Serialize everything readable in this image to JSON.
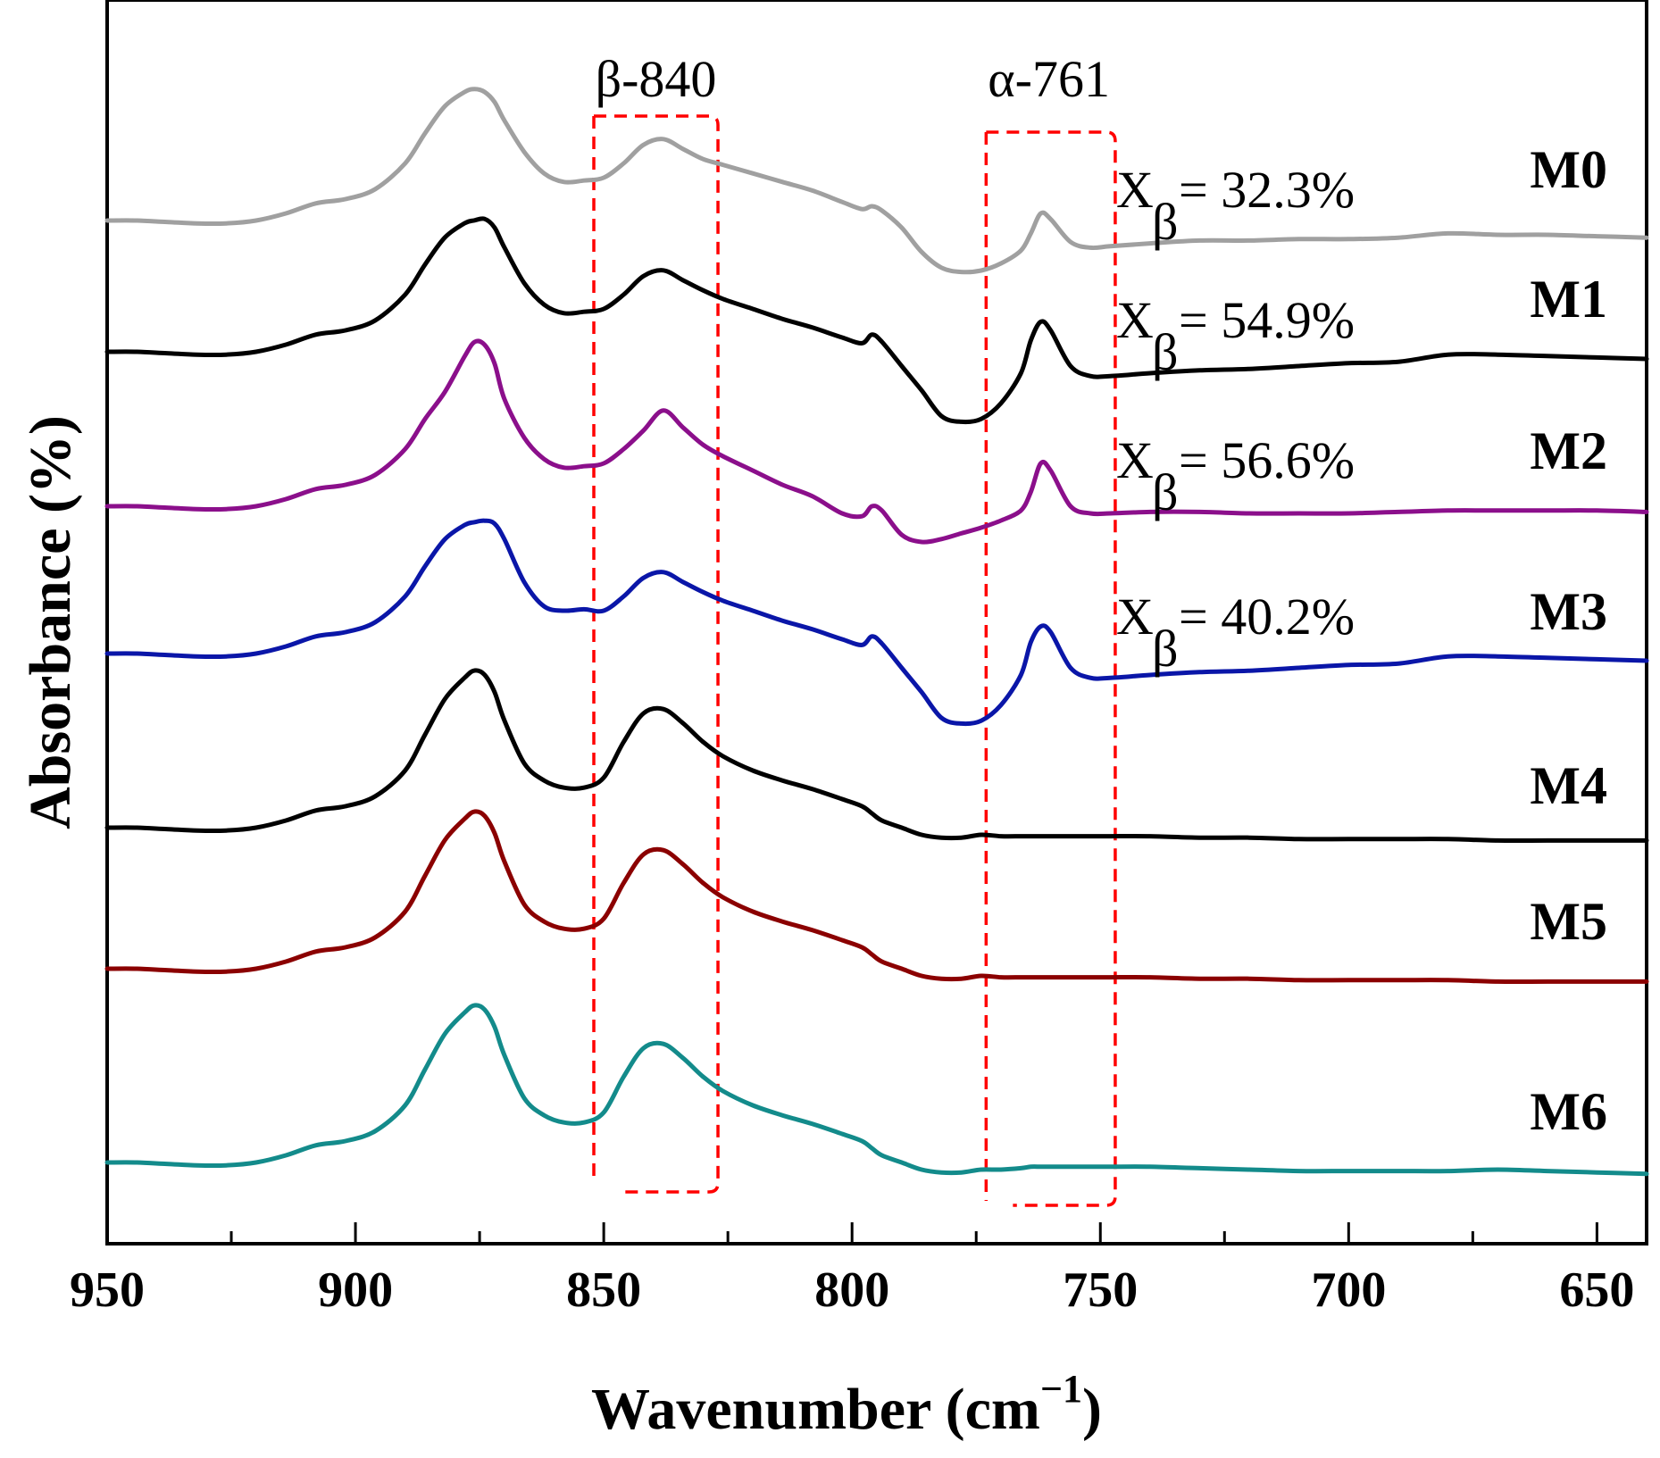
{
  "chart_data": {
    "type": "line",
    "title": "",
    "xlabel_main": "Wavenumber (cm",
    "xlabel_sup": "−1",
    "xlabel_close": ")",
    "ylabel": "Absorbance (%)",
    "xlim": [
      950,
      640
    ],
    "x_reversed": true,
    "x_ticks": [
      950,
      900,
      850,
      800,
      750,
      700,
      650
    ],
    "y_ticks_shown": false,
    "grid": false,
    "legend": "inline labels at right",
    "series_anchor_x": [
      950,
      944,
      938,
      932,
      926,
      920,
      914,
      908,
      902,
      896,
      890,
      886,
      882,
      878,
      876,
      874,
      872,
      870,
      866,
      862,
      858,
      854,
      850,
      846,
      842,
      838,
      834,
      830,
      826,
      820,
      814,
      808,
      802,
      798,
      796,
      794,
      790,
      786,
      782,
      778,
      774,
      770,
      766,
      764,
      762,
      760,
      756,
      752,
      748,
      740,
      730,
      720,
      710,
      700,
      690,
      680,
      670,
      660,
      650,
      640
    ],
    "series": [
      {
        "name": "M0",
        "color": "#a0a0a0",
        "offset": 0,
        "values": [
          0.05,
          0.05,
          0.04,
          0.03,
          0.03,
          0.05,
          0.1,
          0.17,
          0.2,
          0.27,
          0.45,
          0.66,
          0.85,
          0.95,
          0.97,
          0.95,
          0.88,
          0.75,
          0.53,
          0.38,
          0.32,
          0.33,
          0.35,
          0.45,
          0.58,
          0.62,
          0.55,
          0.48,
          0.44,
          0.38,
          0.32,
          0.26,
          0.18,
          0.13,
          0.15,
          0.12,
          0.0,
          -0.17,
          -0.28,
          -0.31,
          -0.3,
          -0.25,
          -0.16,
          -0.04,
          0.1,
          0.06,
          -0.1,
          -0.14,
          -0.13,
          -0.11,
          -0.09,
          -0.09,
          -0.08,
          -0.08,
          -0.07,
          -0.04,
          -0.05,
          -0.05,
          -0.06,
          -0.07
        ]
      },
      {
        "name": "M1",
        "color": "#000000",
        "offset": 0,
        "values": [
          0.05,
          0.05,
          0.04,
          0.03,
          0.03,
          0.05,
          0.1,
          0.17,
          0.2,
          0.27,
          0.45,
          0.66,
          0.85,
          0.95,
          0.97,
          0.98,
          0.92,
          0.78,
          0.53,
          0.38,
          0.32,
          0.33,
          0.35,
          0.45,
          0.58,
          0.62,
          0.55,
          0.48,
          0.42,
          0.35,
          0.28,
          0.22,
          0.15,
          0.11,
          0.17,
          0.12,
          -0.05,
          -0.22,
          -0.4,
          -0.44,
          -0.42,
          -0.31,
          -0.1,
          0.13,
          0.26,
          0.2,
          -0.05,
          -0.12,
          -0.12,
          -0.1,
          -0.08,
          -0.07,
          -0.05,
          -0.03,
          -0.02,
          0.03,
          0.03,
          0.02,
          0.01,
          0.0
        ]
      },
      {
        "name": "M2",
        "color": "#8b0f8b",
        "offset": 0,
        "values": [
          0.05,
          0.05,
          0.04,
          0.03,
          0.03,
          0.05,
          0.1,
          0.17,
          0.2,
          0.27,
          0.45,
          0.66,
          0.85,
          1.1,
          1.2,
          1.18,
          1.05,
          0.8,
          0.53,
          0.38,
          0.32,
          0.33,
          0.35,
          0.45,
          0.58,
          0.72,
          0.6,
          0.48,
          0.4,
          0.3,
          0.2,
          0.12,
          0.0,
          -0.02,
          0.05,
          0.02,
          -0.15,
          -0.2,
          -0.18,
          -0.14,
          -0.1,
          -0.05,
          0.02,
          0.15,
          0.35,
          0.3,
          0.05,
          0.0,
          0.0,
          0.01,
          0.01,
          0.0,
          0.0,
          0.0,
          0.01,
          0.02,
          0.02,
          0.02,
          0.02,
          0.01
        ]
      },
      {
        "name": "M3",
        "color": "#0a16a8",
        "offset": 0,
        "values": [
          0.05,
          0.05,
          0.04,
          0.03,
          0.03,
          0.05,
          0.1,
          0.17,
          0.2,
          0.27,
          0.45,
          0.66,
          0.85,
          0.95,
          0.97,
          0.98,
          0.96,
          0.85,
          0.55,
          0.38,
          0.35,
          0.36,
          0.35,
          0.45,
          0.58,
          0.62,
          0.55,
          0.48,
          0.42,
          0.35,
          0.28,
          0.22,
          0.15,
          0.11,
          0.17,
          0.12,
          -0.05,
          -0.22,
          -0.4,
          -0.44,
          -0.42,
          -0.31,
          -0.1,
          0.13,
          0.24,
          0.2,
          -0.05,
          -0.12,
          -0.12,
          -0.1,
          -0.08,
          -0.07,
          -0.05,
          -0.03,
          -0.02,
          0.03,
          0.03,
          0.02,
          0.01,
          0.0
        ]
      },
      {
        "name": "M4",
        "color": "#000000",
        "offset": 0,
        "values": [
          0.05,
          0.05,
          0.04,
          0.03,
          0.03,
          0.05,
          0.1,
          0.17,
          0.2,
          0.27,
          0.45,
          0.7,
          0.95,
          1.1,
          1.15,
          1.12,
          1.0,
          0.8,
          0.5,
          0.38,
          0.33,
          0.33,
          0.4,
          0.65,
          0.85,
          0.88,
          0.78,
          0.65,
          0.55,
          0.45,
          0.38,
          0.32,
          0.25,
          0.2,
          0.15,
          0.1,
          0.05,
          0.0,
          -0.02,
          -0.02,
          0.0,
          -0.01,
          -0.01,
          -0.01,
          -0.01,
          -0.01,
          -0.01,
          -0.01,
          -0.01,
          -0.01,
          -0.02,
          -0.02,
          -0.03,
          -0.03,
          -0.03,
          -0.03,
          -0.04,
          -0.04,
          -0.04,
          -0.04
        ]
      },
      {
        "name": "M5",
        "color": "#8b0000",
        "offset": 0,
        "values": [
          0.05,
          0.05,
          0.04,
          0.03,
          0.03,
          0.05,
          0.1,
          0.17,
          0.2,
          0.27,
          0.45,
          0.7,
          0.95,
          1.1,
          1.15,
          1.12,
          1.0,
          0.8,
          0.5,
          0.38,
          0.33,
          0.33,
          0.4,
          0.65,
          0.85,
          0.88,
          0.78,
          0.65,
          0.55,
          0.45,
          0.38,
          0.32,
          0.25,
          0.2,
          0.15,
          0.1,
          0.05,
          0.0,
          -0.02,
          -0.02,
          0.0,
          -0.01,
          -0.01,
          -0.01,
          -0.01,
          -0.01,
          -0.01,
          -0.01,
          -0.01,
          -0.01,
          -0.02,
          -0.02,
          -0.03,
          -0.03,
          -0.03,
          -0.03,
          -0.04,
          -0.04,
          -0.04,
          -0.04
        ]
      },
      {
        "name": "M6",
        "color": "#138b8b",
        "offset": 0,
        "values": [
          0.05,
          0.05,
          0.04,
          0.03,
          0.03,
          0.05,
          0.1,
          0.17,
          0.2,
          0.27,
          0.45,
          0.7,
          0.95,
          1.1,
          1.15,
          1.12,
          1.0,
          0.8,
          0.5,
          0.38,
          0.33,
          0.33,
          0.4,
          0.65,
          0.85,
          0.88,
          0.78,
          0.65,
          0.55,
          0.45,
          0.38,
          0.32,
          0.25,
          0.2,
          0.15,
          0.1,
          0.05,
          0.0,
          -0.02,
          -0.02,
          0.0,
          0.0,
          0.01,
          0.02,
          0.02,
          0.02,
          0.02,
          0.02,
          0.02,
          0.02,
          0.01,
          0.0,
          -0.01,
          -0.01,
          -0.01,
          -0.01,
          0.0,
          -0.01,
          -0.02,
          -0.03
        ]
      }
    ],
    "annotations": {
      "beta_band": {
        "label": "β-840",
        "x_range": [
          852,
          827
        ]
      },
      "alpha_band": {
        "label": "α-761",
        "x_range": [
          773,
          747
        ]
      },
      "fractions": [
        {
          "series": "M0",
          "prefix": "X",
          "sub": "β",
          "text": "= 32.3%"
        },
        {
          "series": "M1",
          "prefix": "X",
          "sub": "β",
          "text": "= 54.9%"
        },
        {
          "series": "M2",
          "prefix": "X",
          "sub": "β",
          "text": "= 56.6%"
        },
        {
          "series": "M3",
          "prefix": "X",
          "sub": "β",
          "text": "= 40.2%"
        }
      ]
    }
  }
}
